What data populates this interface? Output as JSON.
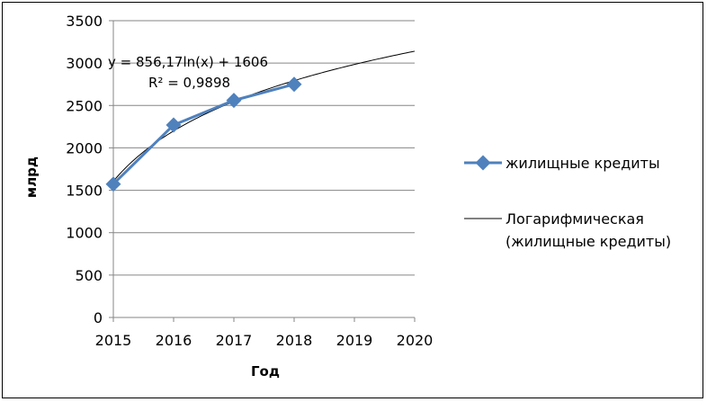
{
  "chart_data": {
    "type": "line",
    "title": "",
    "xlabel": "Год",
    "ylabel": "млрд",
    "xlim": [
      2015,
      2020
    ],
    "ylim": [
      0,
      3500
    ],
    "x_ticks": [
      "2015",
      "2016",
      "2017",
      "2018",
      "2019",
      "2020"
    ],
    "y_ticks": [
      "0",
      "500",
      "1000",
      "1500",
      "2000",
      "2500",
      "3000",
      "3500"
    ],
    "grid": "horizontal",
    "legend_position": "right",
    "series": [
      {
        "name": "жилищные кредиты",
        "color": "#4F81BD",
        "marker": "diamond",
        "x": [
          2015,
          2016,
          2017,
          2018
        ],
        "values": [
          1573,
          2270,
          2560,
          2750
        ]
      }
    ],
    "trendline": {
      "type": "logarithmic",
      "legend_lines": [
        "Логарифмическая",
        "(жилищные кредиты)"
      ],
      "color": "#000000",
      "coef_a": 856.17,
      "coef_b": 1606,
      "x_index_start": 2014,
      "x_end": 2020
    },
    "annotations": {
      "equation": "y = 856,17ln(x) + 1606",
      "r_squared": "R² = 0,9898"
    }
  }
}
